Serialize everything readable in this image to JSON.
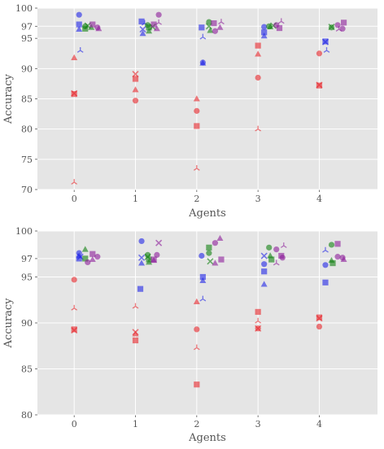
{
  "chart_data": [
    {
      "type": "scatter",
      "xlabel": "Agents",
      "ylabel": "Accuracy",
      "xlim": [
        -0.6,
        4.95
      ],
      "ylim": [
        70,
        100
      ],
      "xticks": [
        "0",
        "1",
        "2",
        "3",
        "4"
      ],
      "yticks": [
        "70",
        "75",
        "80",
        "85",
        "90",
        "95",
        "97",
        "100"
      ],
      "grid": true,
      "colors": {
        "red": "#e8242a",
        "blue": "#1f25e6",
        "green": "#118011",
        "purple": "#8c1d99"
      },
      "points": [
        {
          "x": 0.0,
          "y": 71.2,
          "c": "red",
          "m": "tri_down"
        },
        {
          "x": 0.0,
          "y": 85.8,
          "c": "red",
          "m": "square"
        },
        {
          "x": 0.0,
          "y": 85.9,
          "c": "red",
          "m": "x"
        },
        {
          "x": 0.0,
          "y": 91.8,
          "c": "red",
          "m": "triangle"
        },
        {
          "x": 0.08,
          "y": 98.9,
          "c": "blue",
          "m": "circle"
        },
        {
          "x": 0.08,
          "y": 97.3,
          "c": "blue",
          "m": "square"
        },
        {
          "x": 0.08,
          "y": 96.5,
          "c": "blue",
          "m": "triangle"
        },
        {
          "x": 0.1,
          "y": 93.0,
          "c": "blue",
          "m": "tri_down"
        },
        {
          "x": 0.18,
          "y": 97.0,
          "c": "green",
          "m": "circle"
        },
        {
          "x": 0.18,
          "y": 96.6,
          "c": "green",
          "m": "square"
        },
        {
          "x": 0.22,
          "y": 97.1,
          "c": "green",
          "m": "x"
        },
        {
          "x": 0.28,
          "y": 96.8,
          "c": "green",
          "m": "triangle"
        },
        {
          "x": 0.3,
          "y": 97.3,
          "c": "purple",
          "m": "square"
        },
        {
          "x": 0.38,
          "y": 96.8,
          "c": "purple",
          "m": "circle"
        },
        {
          "x": 0.4,
          "y": 96.6,
          "c": "purple",
          "m": "triangle"
        },
        {
          "x": 1.0,
          "y": 89.1,
          "c": "red",
          "m": "x"
        },
        {
          "x": 1.0,
          "y": 88.3,
          "c": "red",
          "m": "square"
        },
        {
          "x": 1.0,
          "y": 86.5,
          "c": "red",
          "m": "triangle"
        },
        {
          "x": 1.0,
          "y": 84.7,
          "c": "red",
          "m": "circle"
        },
        {
          "x": 1.1,
          "y": 97.8,
          "c": "blue",
          "m": "square"
        },
        {
          "x": 1.12,
          "y": 96.5,
          "c": "blue",
          "m": "x"
        },
        {
          "x": 1.12,
          "y": 95.8,
          "c": "blue",
          "m": "triangle"
        },
        {
          "x": 1.15,
          "y": 97.5,
          "c": "blue",
          "m": "tri_down"
        },
        {
          "x": 1.2,
          "y": 97.2,
          "c": "green",
          "m": "circle"
        },
        {
          "x": 1.22,
          "y": 96.8,
          "c": "green",
          "m": "square"
        },
        {
          "x": 1.22,
          "y": 96.2,
          "c": "green",
          "m": "triangle"
        },
        {
          "x": 1.28,
          "y": 96.9,
          "c": "green",
          "m": "x"
        },
        {
          "x": 1.3,
          "y": 97.3,
          "c": "purple",
          "m": "square"
        },
        {
          "x": 1.35,
          "y": 96.6,
          "c": "purple",
          "m": "triangle"
        },
        {
          "x": 1.38,
          "y": 98.9,
          "c": "purple",
          "m": "circle"
        },
        {
          "x": 1.38,
          "y": 97.6,
          "c": "purple",
          "m": "tri_down"
        },
        {
          "x": 2.0,
          "y": 73.5,
          "c": "red",
          "m": "tri_down"
        },
        {
          "x": 2.0,
          "y": 80.5,
          "c": "red",
          "m": "square"
        },
        {
          "x": 2.0,
          "y": 83.0,
          "c": "red",
          "m": "circle"
        },
        {
          "x": 2.0,
          "y": 85.0,
          "c": "red",
          "m": "triangle"
        },
        {
          "x": 2.08,
          "y": 96.8,
          "c": "blue",
          "m": "square"
        },
        {
          "x": 2.1,
          "y": 95.2,
          "c": "blue",
          "m": "tri_down"
        },
        {
          "x": 2.1,
          "y": 91.0,
          "c": "blue",
          "m": "circle"
        },
        {
          "x": 2.1,
          "y": 90.9,
          "c": "blue",
          "m": "triangle"
        },
        {
          "x": 2.2,
          "y": 97.7,
          "c": "green",
          "m": "circle"
        },
        {
          "x": 2.2,
          "y": 97.0,
          "c": "green",
          "m": "x"
        },
        {
          "x": 2.22,
          "y": 96.3,
          "c": "green",
          "m": "triangle"
        },
        {
          "x": 2.28,
          "y": 97.5,
          "c": "purple",
          "m": "square"
        },
        {
          "x": 2.3,
          "y": 96.2,
          "c": "purple",
          "m": "circle"
        },
        {
          "x": 2.38,
          "y": 96.8,
          "c": "purple",
          "m": "triangle"
        },
        {
          "x": 2.4,
          "y": 97.7,
          "c": "purple",
          "m": "tri_down"
        },
        {
          "x": 3.0,
          "y": 93.8,
          "c": "red",
          "m": "square"
        },
        {
          "x": 3.0,
          "y": 92.4,
          "c": "red",
          "m": "triangle"
        },
        {
          "x": 3.0,
          "y": 88.5,
          "c": "red",
          "m": "circle"
        },
        {
          "x": 3.0,
          "y": 80.0,
          "c": "red",
          "m": "tri_down"
        },
        {
          "x": 3.1,
          "y": 96.9,
          "c": "blue",
          "m": "circle"
        },
        {
          "x": 3.1,
          "y": 96.0,
          "c": "blue",
          "m": "square"
        },
        {
          "x": 3.1,
          "y": 95.4,
          "c": "blue",
          "m": "triangle"
        },
        {
          "x": 3.18,
          "y": 97.0,
          "c": "green",
          "m": "circle"
        },
        {
          "x": 3.2,
          "y": 96.9,
          "c": "green",
          "m": "triangle"
        },
        {
          "x": 3.25,
          "y": 97.1,
          "c": "green",
          "m": "x"
        },
        {
          "x": 3.3,
          "y": 97.2,
          "c": "purple",
          "m": "circle"
        },
        {
          "x": 3.35,
          "y": 96.7,
          "c": "purple",
          "m": "square"
        },
        {
          "x": 3.38,
          "y": 97.8,
          "c": "purple",
          "m": "tri_down"
        },
        {
          "x": 4.0,
          "y": 92.5,
          "c": "red",
          "m": "circle"
        },
        {
          "x": 4.0,
          "y": 87.2,
          "c": "red",
          "m": "square"
        },
        {
          "x": 4.0,
          "y": 87.3,
          "c": "red",
          "m": "x"
        },
        {
          "x": 4.1,
          "y": 94.5,
          "c": "blue",
          "m": "square"
        },
        {
          "x": 4.1,
          "y": 94.4,
          "c": "blue",
          "m": "x"
        },
        {
          "x": 4.12,
          "y": 93.0,
          "c": "blue",
          "m": "tri_down"
        },
        {
          "x": 4.2,
          "y": 96.8,
          "c": "green",
          "m": "circle"
        },
        {
          "x": 4.2,
          "y": 96.9,
          "c": "green",
          "m": "x"
        },
        {
          "x": 4.3,
          "y": 97.2,
          "c": "purple",
          "m": "circle"
        },
        {
          "x": 4.32,
          "y": 96.5,
          "c": "purple",
          "m": "tri_down"
        },
        {
          "x": 4.38,
          "y": 96.6,
          "c": "purple",
          "m": "circle"
        },
        {
          "x": 4.4,
          "y": 97.6,
          "c": "purple",
          "m": "square"
        }
      ]
    },
    {
      "type": "scatter",
      "xlabel": "Agents",
      "ylabel": "Accuracy",
      "xlim": [
        -0.6,
        4.95
      ],
      "ylim": [
        80,
        100
      ],
      "xticks": [
        "0",
        "1",
        "2",
        "3",
        "4"
      ],
      "yticks": [
        "80",
        "85",
        "90",
        "95",
        "97",
        "100"
      ],
      "grid": true,
      "colors": {
        "red": "#e8242a",
        "blue": "#1f25e6",
        "green": "#118011",
        "purple": "#8c1d99"
      },
      "points": [
        {
          "x": 0.0,
          "y": 94.7,
          "c": "red",
          "m": "circle"
        },
        {
          "x": 0.0,
          "y": 91.6,
          "c": "red",
          "m": "tri_down"
        },
        {
          "x": 0.0,
          "y": 89.3,
          "c": "red",
          "m": "square"
        },
        {
          "x": 0.0,
          "y": 89.2,
          "c": "red",
          "m": "x"
        },
        {
          "x": 0.08,
          "y": 97.6,
          "c": "blue",
          "m": "circle"
        },
        {
          "x": 0.08,
          "y": 97.3,
          "c": "blue",
          "m": "triangle"
        },
        {
          "x": 0.08,
          "y": 97.0,
          "c": "blue",
          "m": "square"
        },
        {
          "x": 0.1,
          "y": 97.2,
          "c": "blue",
          "m": "x"
        },
        {
          "x": 0.18,
          "y": 98.0,
          "c": "green",
          "m": "triangle"
        },
        {
          "x": 0.18,
          "y": 97.0,
          "c": "green",
          "m": "square"
        },
        {
          "x": 0.22,
          "y": 96.6,
          "c": "purple",
          "m": "circle"
        },
        {
          "x": 0.3,
          "y": 97.5,
          "c": "purple",
          "m": "square"
        },
        {
          "x": 0.3,
          "y": 96.9,
          "c": "purple",
          "m": "triangle"
        },
        {
          "x": 0.38,
          "y": 97.2,
          "c": "purple",
          "m": "circle"
        },
        {
          "x": 1.0,
          "y": 91.8,
          "c": "red",
          "m": "tri_down"
        },
        {
          "x": 1.0,
          "y": 89.0,
          "c": "red",
          "m": "x"
        },
        {
          "x": 1.0,
          "y": 88.8,
          "c": "red",
          "m": "triangle"
        },
        {
          "x": 1.0,
          "y": 88.1,
          "c": "red",
          "m": "square"
        },
        {
          "x": 1.1,
          "y": 98.9,
          "c": "blue",
          "m": "circle"
        },
        {
          "x": 1.1,
          "y": 97.1,
          "c": "blue",
          "m": "x"
        },
        {
          "x": 1.1,
          "y": 96.5,
          "c": "blue",
          "m": "triangle"
        },
        {
          "x": 1.08,
          "y": 93.7,
          "c": "blue",
          "m": "square"
        },
        {
          "x": 1.2,
          "y": 97.4,
          "c": "green",
          "m": "circle"
        },
        {
          "x": 1.2,
          "y": 97.2,
          "c": "green",
          "m": "x"
        },
        {
          "x": 1.22,
          "y": 96.6,
          "c": "green",
          "m": "triangle"
        },
        {
          "x": 1.22,
          "y": 96.9,
          "c": "green",
          "m": "square"
        },
        {
          "x": 1.3,
          "y": 96.9,
          "c": "purple",
          "m": "square"
        },
        {
          "x": 1.3,
          "y": 96.8,
          "c": "purple",
          "m": "triangle"
        },
        {
          "x": 1.35,
          "y": 97.4,
          "c": "purple",
          "m": "circle"
        },
        {
          "x": 1.38,
          "y": 98.7,
          "c": "purple",
          "m": "x"
        },
        {
          "x": 2.0,
          "y": 92.3,
          "c": "red",
          "m": "triangle"
        },
        {
          "x": 2.0,
          "y": 89.3,
          "c": "red",
          "m": "circle"
        },
        {
          "x": 2.0,
          "y": 87.3,
          "c": "red",
          "m": "tri_down"
        },
        {
          "x": 2.0,
          "y": 83.3,
          "c": "red",
          "m": "square"
        },
        {
          "x": 2.08,
          "y": 97.3,
          "c": "blue",
          "m": "circle"
        },
        {
          "x": 2.1,
          "y": 95.0,
          "c": "blue",
          "m": "square"
        },
        {
          "x": 2.1,
          "y": 94.6,
          "c": "blue",
          "m": "triangle"
        },
        {
          "x": 2.1,
          "y": 92.6,
          "c": "blue",
          "m": "tri_down"
        },
        {
          "x": 2.2,
          "y": 98.2,
          "c": "green",
          "m": "square"
        },
        {
          "x": 2.2,
          "y": 97.6,
          "c": "green",
          "m": "circle"
        },
        {
          "x": 2.22,
          "y": 96.7,
          "c": "green",
          "m": "x"
        },
        {
          "x": 2.3,
          "y": 98.7,
          "c": "purple",
          "m": "circle"
        },
        {
          "x": 2.3,
          "y": 96.5,
          "c": "purple",
          "m": "triangle"
        },
        {
          "x": 2.38,
          "y": 99.2,
          "c": "purple",
          "m": "triangle"
        },
        {
          "x": 2.4,
          "y": 96.9,
          "c": "purple",
          "m": "square"
        },
        {
          "x": 3.0,
          "y": 91.2,
          "c": "red",
          "m": "square"
        },
        {
          "x": 3.0,
          "y": 90.2,
          "c": "red",
          "m": "tri_down"
        },
        {
          "x": 3.0,
          "y": 89.4,
          "c": "red",
          "m": "circle"
        },
        {
          "x": 3.0,
          "y": 89.4,
          "c": "red",
          "m": "x"
        },
        {
          "x": 3.1,
          "y": 97.3,
          "c": "blue",
          "m": "x"
        },
        {
          "x": 3.1,
          "y": 96.4,
          "c": "blue",
          "m": "circle"
        },
        {
          "x": 3.1,
          "y": 95.6,
          "c": "blue",
          "m": "square"
        },
        {
          "x": 3.1,
          "y": 94.2,
          "c": "blue",
          "m": "triangle"
        },
        {
          "x": 3.18,
          "y": 98.2,
          "c": "green",
          "m": "circle"
        },
        {
          "x": 3.2,
          "y": 97.3,
          "c": "green",
          "m": "triangle"
        },
        {
          "x": 3.22,
          "y": 96.9,
          "c": "green",
          "m": "square"
        },
        {
          "x": 3.3,
          "y": 98.0,
          "c": "purple",
          "m": "circle"
        },
        {
          "x": 3.3,
          "y": 96.5,
          "c": "purple",
          "m": "tri_down"
        },
        {
          "x": 3.38,
          "y": 97.3,
          "c": "purple",
          "m": "square"
        },
        {
          "x": 3.4,
          "y": 97.1,
          "c": "purple",
          "m": "circle"
        },
        {
          "x": 3.42,
          "y": 98.4,
          "c": "purple",
          "m": "tri_down"
        },
        {
          "x": 4.0,
          "y": 90.6,
          "c": "red",
          "m": "square"
        },
        {
          "x": 4.0,
          "y": 90.5,
          "c": "red",
          "m": "x"
        },
        {
          "x": 4.0,
          "y": 89.6,
          "c": "red",
          "m": "circle"
        },
        {
          "x": 4.1,
          "y": 97.9,
          "c": "blue",
          "m": "tri_down"
        },
        {
          "x": 4.1,
          "y": 96.3,
          "c": "blue",
          "m": "circle"
        },
        {
          "x": 4.1,
          "y": 94.4,
          "c": "blue",
          "m": "square"
        },
        {
          "x": 4.2,
          "y": 98.5,
          "c": "green",
          "m": "circle"
        },
        {
          "x": 4.2,
          "y": 96.8,
          "c": "green",
          "m": "triangle"
        },
        {
          "x": 4.22,
          "y": 96.5,
          "c": "green",
          "m": "square"
        },
        {
          "x": 4.3,
          "y": 98.6,
          "c": "purple",
          "m": "square"
        },
        {
          "x": 4.3,
          "y": 97.2,
          "c": "purple",
          "m": "circle"
        },
        {
          "x": 4.38,
          "y": 97.1,
          "c": "purple",
          "m": "circle"
        },
        {
          "x": 4.4,
          "y": 96.9,
          "c": "purple",
          "m": "triangle"
        }
      ]
    }
  ]
}
